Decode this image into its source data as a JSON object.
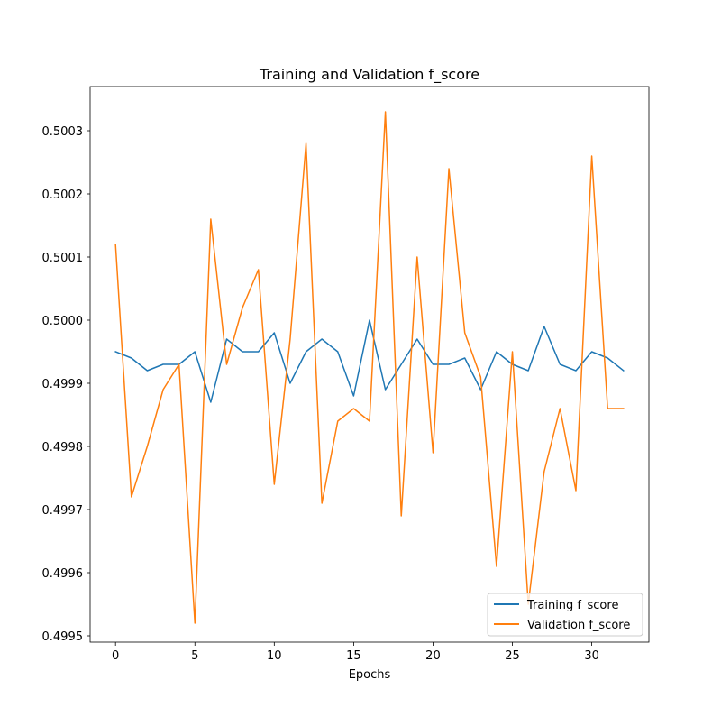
{
  "chart_data": {
    "type": "line",
    "title": "Training and Validation f_score",
    "xlabel": "Epochs",
    "ylabel": "",
    "xlim": [
      -1.6,
      33.6
    ],
    "ylim": [
      0.49949,
      0.50037
    ],
    "xticks": [
      0,
      5,
      10,
      15,
      20,
      25,
      30
    ],
    "yticks": [
      0.4995,
      0.4996,
      0.4997,
      0.4998,
      0.4999,
      0.5,
      0.5001,
      0.5002,
      0.5003
    ],
    "ytick_labels": [
      "0.4995",
      "0.4996",
      "0.4997",
      "0.4998",
      "0.4999",
      "0.5000",
      "0.5001",
      "0.5002",
      "0.5003"
    ],
    "grid": false,
    "legend_position": "lower-right",
    "x": [
      0,
      1,
      2,
      3,
      4,
      5,
      6,
      7,
      8,
      9,
      10,
      11,
      12,
      13,
      14,
      15,
      16,
      17,
      18,
      19,
      20,
      21,
      22,
      23,
      24,
      25,
      26,
      27,
      28,
      29,
      30,
      31,
      32
    ],
    "series": [
      {
        "name": "Training f_score",
        "color": "#1f77b4",
        "values": [
          0.49995,
          0.49994,
          0.49992,
          0.49993,
          0.49993,
          0.49995,
          0.49987,
          0.49997,
          0.49995,
          0.49995,
          0.49998,
          0.4999,
          0.49995,
          0.49997,
          0.49995,
          0.49988,
          0.5,
          0.49989,
          0.49993,
          0.49997,
          0.49993,
          0.49993,
          0.49994,
          0.49989,
          0.49995,
          0.49993,
          0.49992,
          0.49999,
          0.49993,
          0.49992,
          0.49995,
          0.49994,
          0.49992
        ]
      },
      {
        "name": "Validation f_score",
        "color": "#ff7f0e",
        "values": [
          0.50012,
          0.49972,
          0.4998,
          0.49989,
          0.49993,
          0.49952,
          0.50016,
          0.49993,
          0.50002,
          0.50008,
          0.49974,
          0.49997,
          0.50028,
          0.49971,
          0.49984,
          0.49986,
          0.49984,
          0.50033,
          0.49969,
          0.5001,
          0.49979,
          0.50024,
          0.49998,
          0.49991,
          0.49961,
          0.49995,
          0.49955,
          0.49976,
          0.49986,
          0.49973,
          0.50026,
          0.49986,
          0.49986
        ]
      }
    ]
  }
}
